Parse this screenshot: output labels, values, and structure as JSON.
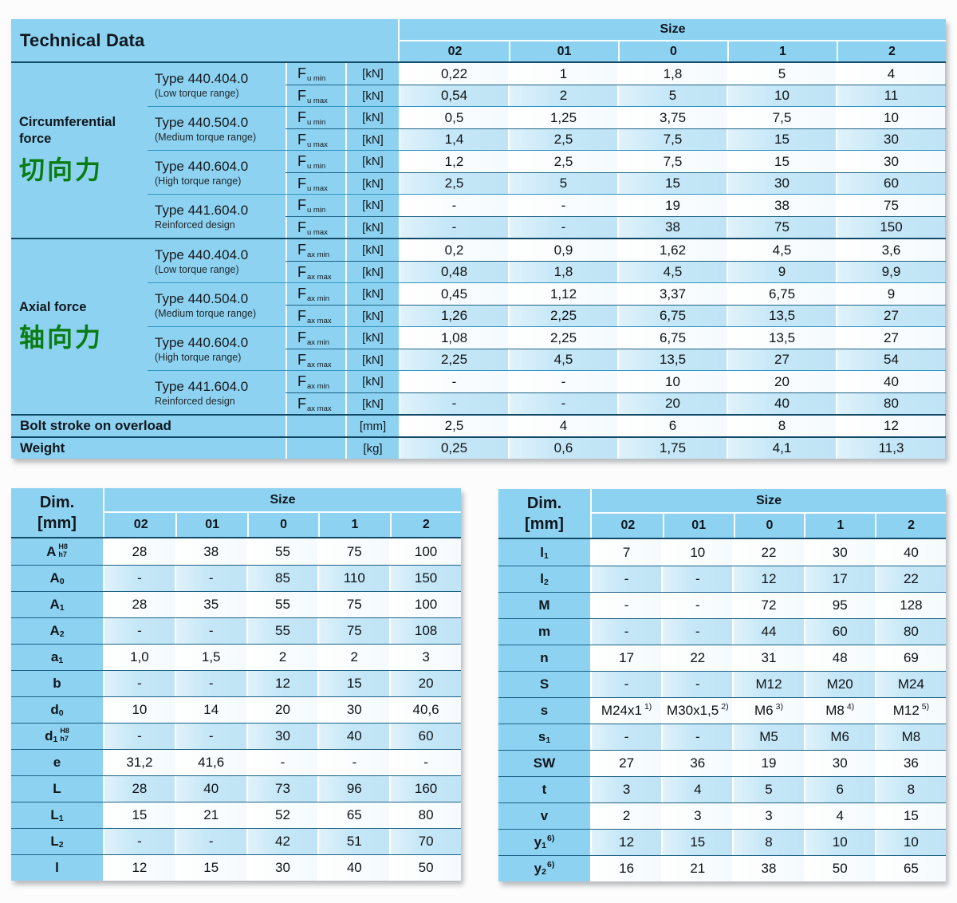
{
  "colors": {
    "table_background": "#8dd3f1",
    "row_blue": "#c5e7f7",
    "row_white": "#ffffff",
    "separator_dark": "#134a68",
    "separator_row": "#1c6286",
    "text": "#10161c",
    "chinese_annotation_green": "#0a7c12"
  },
  "top_table": {
    "title": "Technical Data",
    "size_label": "Size",
    "size_columns": [
      "02",
      "01",
      "0",
      "1",
      "2"
    ],
    "sections": [
      {
        "category": "Circumferential\nforce",
        "category_cn": "切向力",
        "groups": [
          {
            "type": "Type 440.404.0",
            "subtitle": "(Low torque range)",
            "rows": [
              {
                "f": "F",
                "fsub": "u min",
                "unit": "[kN]",
                "values": [
                  "0,22",
                  "1",
                  "1,8",
                  "5",
                  "4"
                ]
              },
              {
                "f": "F",
                "fsub": "u max",
                "unit": "[kN]",
                "values": [
                  "0,54",
                  "2",
                  "5",
                  "10",
                  "11"
                ]
              }
            ]
          },
          {
            "type": "Type 440.504.0",
            "subtitle": "(Medium torque range)",
            "rows": [
              {
                "f": "F",
                "fsub": "u min",
                "unit": "[kN]",
                "values": [
                  "0,5",
                  "1,25",
                  "3,75",
                  "7,5",
                  "10"
                ]
              },
              {
                "f": "F",
                "fsub": "u max",
                "unit": "[kN]",
                "values": [
                  "1,4",
                  "2,5",
                  "7,5",
                  "15",
                  "30"
                ]
              }
            ]
          },
          {
            "type": "Type 440.604.0",
            "subtitle": "(High torque range)",
            "rows": [
              {
                "f": "F",
                "fsub": "u min",
                "unit": "[kN]",
                "values": [
                  "1,2",
                  "2,5",
                  "7,5",
                  "15",
                  "30"
                ]
              },
              {
                "f": "F",
                "fsub": "u max",
                "unit": "[kN]",
                "values": [
                  "2,5",
                  "5",
                  "15",
                  "30",
                  "60"
                ]
              }
            ]
          },
          {
            "type": "Type 441.604.0",
            "subtitle": "Reinforced design",
            "rows": [
              {
                "f": "F",
                "fsub": "u min",
                "unit": "[kN]",
                "values": [
                  "-",
                  "-",
                  "19",
                  "38",
                  "75"
                ]
              },
              {
                "f": "F",
                "fsub": "u max",
                "unit": "[kN]",
                "values": [
                  "-",
                  "-",
                  "38",
                  "75",
                  "150"
                ]
              }
            ]
          }
        ]
      },
      {
        "category": "Axial force",
        "category_cn": "轴向力",
        "groups": [
          {
            "type": "Type 440.404.0",
            "subtitle": "(Low torque range)",
            "rows": [
              {
                "f": "F",
                "fsub": "ax min",
                "unit": "[kN]",
                "values": [
                  "0,2",
                  "0,9",
                  "1,62",
                  "4,5",
                  "3,6"
                ]
              },
              {
                "f": "F",
                "fsub": "ax max",
                "unit": "[kN]",
                "values": [
                  "0,48",
                  "1,8",
                  "4,5",
                  "9",
                  "9,9"
                ]
              }
            ]
          },
          {
            "type": "Type 440.504.0",
            "subtitle": "(Medium torque range)",
            "rows": [
              {
                "f": "F",
                "fsub": "ax min",
                "unit": "[kN]",
                "values": [
                  "0,45",
                  "1,12",
                  "3,37",
                  "6,75",
                  "9"
                ]
              },
              {
                "f": "F",
                "fsub": "ax max",
                "unit": "[kN]",
                "values": [
                  "1,26",
                  "2,25",
                  "6,75",
                  "13,5",
                  "27"
                ]
              }
            ]
          },
          {
            "type": "Type 440.604.0",
            "subtitle": "(High torque range)",
            "rows": [
              {
                "f": "F",
                "fsub": "ax min",
                "unit": "[kN]",
                "values": [
                  "1,08",
                  "2,25",
                  "6,75",
                  "13,5",
                  "27"
                ]
              },
              {
                "f": "F",
                "fsub": "ax max",
                "unit": "[kN]",
                "values": [
                  "2,25",
                  "4,5",
                  "13,5",
                  "27",
                  "54"
                ]
              }
            ]
          },
          {
            "type": "Type 441.604.0",
            "subtitle": "Reinforced design",
            "rows": [
              {
                "f": "F",
                "fsub": "ax min",
                "unit": "[kN]",
                "values": [
                  "-",
                  "-",
                  "10",
                  "20",
                  "40"
                ]
              },
              {
                "f": "F",
                "fsub": "ax max",
                "unit": "[kN]",
                "values": [
                  "-",
                  "-",
                  "20",
                  "40",
                  "80"
                ]
              }
            ]
          }
        ]
      }
    ],
    "footer": [
      {
        "label": "Bolt stroke on overload",
        "unit": "[mm]",
        "values": [
          "2,5",
          "4",
          "6",
          "8",
          "12"
        ],
        "shade": "white"
      },
      {
        "label": "Weight",
        "unit": "[kg]",
        "values": [
          "0,25",
          "0,6",
          "1,75",
          "4,1",
          "11,3"
        ],
        "shade": "blue"
      }
    ]
  },
  "dim_table_left": {
    "title_line1": "Dim.",
    "title_line2": "[mm]",
    "size_label": "Size",
    "size_columns": [
      "02",
      "01",
      "0",
      "1",
      "2"
    ],
    "rows": [
      {
        "label": "A",
        "stack": [
          "H8",
          "h7"
        ],
        "values": [
          "28",
          "38",
          "55",
          "75",
          "100"
        ]
      },
      {
        "label": "A",
        "sub": "0",
        "values": [
          "-",
          "-",
          "85",
          "110",
          "150"
        ]
      },
      {
        "label": "A",
        "sub": "1",
        "values": [
          "28",
          "35",
          "55",
          "75",
          "100"
        ]
      },
      {
        "label": "A",
        "sub": "2",
        "values": [
          "-",
          "-",
          "55",
          "75",
          "108"
        ]
      },
      {
        "label": "a",
        "sub": "1",
        "values": [
          "1,0",
          "1,5",
          "2",
          "2",
          "3"
        ]
      },
      {
        "label": "b",
        "values": [
          "-",
          "-",
          "12",
          "15",
          "20"
        ]
      },
      {
        "label": "d",
        "sub": "0",
        "values": [
          "10",
          "14",
          "20",
          "30",
          "40,6"
        ]
      },
      {
        "label": "d",
        "sub": "1",
        "stack": [
          "H8",
          "h7"
        ],
        "values": [
          "-",
          "-",
          "30",
          "40",
          "60"
        ]
      },
      {
        "label": "e",
        "values": [
          "31,2",
          "41,6",
          "-",
          "-",
          "-"
        ]
      },
      {
        "label": "L",
        "values": [
          "28",
          "40",
          "73",
          "96",
          "160"
        ]
      },
      {
        "label": "L",
        "sub": "1",
        "values": [
          "15",
          "21",
          "52",
          "65",
          "80"
        ]
      },
      {
        "label": "L",
        "sub": "2",
        "values": [
          "-",
          "-",
          "42",
          "51",
          "70"
        ]
      },
      {
        "label": "l",
        "values": [
          "12",
          "15",
          "30",
          "40",
          "50"
        ]
      }
    ]
  },
  "dim_table_right": {
    "title_line1": "Dim.",
    "title_line2": "[mm]",
    "size_label": "Size",
    "size_columns": [
      "02",
      "01",
      "0",
      "1",
      "2"
    ],
    "rows": [
      {
        "label": "l",
        "sub": "1",
        "values": [
          "7",
          "10",
          "22",
          "30",
          "40"
        ]
      },
      {
        "label": "l",
        "sub": "2",
        "values": [
          "-",
          "-",
          "12",
          "17",
          "22"
        ]
      },
      {
        "label": "M",
        "values": [
          "-",
          "-",
          "72",
          "95",
          "128"
        ]
      },
      {
        "label": "m",
        "values": [
          "-",
          "-",
          "44",
          "60",
          "80"
        ]
      },
      {
        "label": "n",
        "values": [
          "17",
          "22",
          "31",
          "48",
          "69"
        ]
      },
      {
        "label": "S",
        "values": [
          "-",
          "-",
          "M12",
          "M20",
          "M24"
        ]
      },
      {
        "label": "s",
        "values": [
          {
            "t": "M24x1",
            "sup": "1)"
          },
          {
            "t": "M30x1,5",
            "sup": "2)"
          },
          {
            "t": "M6",
            "sup": "3)"
          },
          {
            "t": "M8",
            "sup": "4)"
          },
          {
            "t": "M12",
            "sup": "5)"
          }
        ]
      },
      {
        "label": "s",
        "sub": "1",
        "values": [
          "-",
          "-",
          "M5",
          "M6",
          "M8"
        ]
      },
      {
        "label": "SW",
        "values": [
          "27",
          "36",
          "19",
          "30",
          "36"
        ]
      },
      {
        "label": "t",
        "values": [
          "3",
          "4",
          "5",
          "6",
          "8"
        ]
      },
      {
        "label": "v",
        "values": [
          "2",
          "3",
          "3",
          "4",
          "15"
        ]
      },
      {
        "label": "y",
        "sub": "1",
        "sup": "6)",
        "values": [
          "12",
          "15",
          "8",
          "10",
          "10"
        ]
      },
      {
        "label": "y",
        "sub": "2",
        "sup": "6)",
        "values": [
          "16",
          "21",
          "38",
          "50",
          "65"
        ]
      }
    ]
  }
}
